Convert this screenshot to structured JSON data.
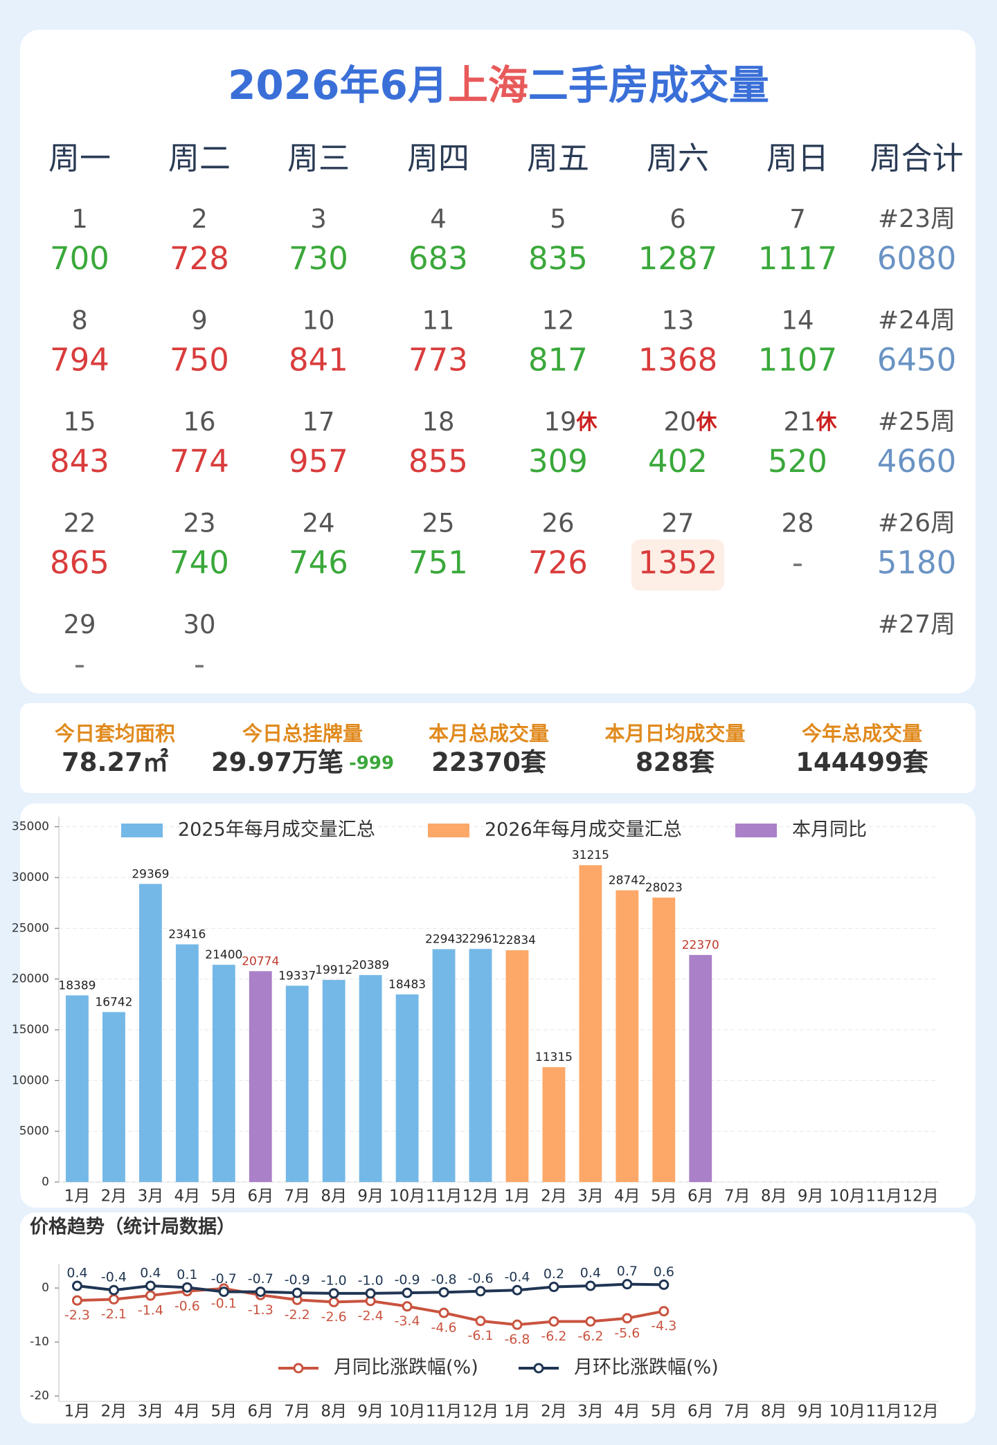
{
  "title_parts": [
    {
      "text": "2026年6月",
      "color": "#3a6fd8"
    },
    {
      "text": "上海",
      "color": "#e85a5a"
    },
    {
      "text": "二手房成交量",
      "color": "#3a6fd8"
    }
  ],
  "calendar": {
    "headers": [
      "周一",
      "周二",
      "周三",
      "周四",
      "周五",
      "周六",
      "周日",
      "周合计"
    ],
    "rows": [
      {
        "cells": [
          {
            "day": 1,
            "value": 700,
            "color": "#3aa83a"
          },
          {
            "day": 2,
            "value": 728,
            "color": "#d93c3c"
          },
          {
            "day": 3,
            "value": 730,
            "color": "#3aa83a"
          },
          {
            "day": 4,
            "value": 683,
            "color": "#3aa83a"
          },
          {
            "day": 5,
            "value": 835,
            "color": "#3aa83a"
          },
          {
            "day": 6,
            "value": 1287,
            "color": "#3aa83a"
          },
          {
            "day": 7,
            "value": 1117,
            "color": "#3aa83a"
          }
        ],
        "week": "#23周",
        "total": 6080
      },
      {
        "cells": [
          {
            "day": 8,
            "value": 794,
            "color": "#d93c3c"
          },
          {
            "day": 9,
            "value": 750,
            "color": "#d93c3c"
          },
          {
            "day": 10,
            "value": 841,
            "color": "#d93c3c"
          },
          {
            "day": 11,
            "value": 773,
            "color": "#d93c3c"
          },
          {
            "day": 12,
            "value": 817,
            "color": "#3aa83a"
          },
          {
            "day": 13,
            "value": 1368,
            "color": "#d93c3c"
          },
          {
            "day": 14,
            "value": 1107,
            "color": "#3aa83a"
          }
        ],
        "week": "#24周",
        "total": 6450
      },
      {
        "cells": [
          {
            "day": 15,
            "value": 843,
            "color": "#d93c3c"
          },
          {
            "day": 16,
            "value": 774,
            "color": "#d93c3c"
          },
          {
            "day": 17,
            "value": 957,
            "color": "#d93c3c"
          },
          {
            "day": 18,
            "value": 855,
            "color": "#d93c3c"
          },
          {
            "day": 19,
            "note": "休",
            "value": 309,
            "color": "#3aa83a"
          },
          {
            "day": 20,
            "note": "休",
            "value": 402,
            "color": "#3aa83a"
          },
          {
            "day": 21,
            "note": "休",
            "value": 520,
            "color": "#3aa83a"
          }
        ],
        "week": "#25周",
        "total": 4660
      },
      {
        "cells": [
          {
            "day": 22,
            "value": 865,
            "color": "#d93c3c"
          },
          {
            "day": 23,
            "value": 740,
            "color": "#3aa83a"
          },
          {
            "day": 24,
            "value": 746,
            "color": "#3aa83a"
          },
          {
            "day": 25,
            "value": 751,
            "color": "#3aa83a"
          },
          {
            "day": 26,
            "value": 726,
            "color": "#d93c3c"
          },
          {
            "day": 27,
            "value": 1352,
            "color": "#d93c3c",
            "highlight": "#fdeee6"
          },
          {
            "day": 28,
            "value": "-",
            "color": "#777777"
          }
        ],
        "week": "#26周",
        "total": 5180
      },
      {
        "cells": [
          {
            "day": 29,
            "value": "-",
            "color": "#777777"
          },
          {
            "day": 30,
            "value": "-",
            "color": "#777777"
          }
        ],
        "week": "#27周"
      }
    ]
  },
  "stats": [
    {
      "label": "今日套均面积",
      "value": "78.27㎡"
    },
    {
      "label": "今日总挂牌量",
      "value": "29.97万笔",
      "change": "-999",
      "change_color": "#3aa83a"
    },
    {
      "label": "本月总成交量",
      "value": "22370套"
    },
    {
      "label": "本月日均成交量",
      "value": "828套"
    },
    {
      "label": "今年总成交量",
      "value": "144499套"
    }
  ],
  "chart_data": [
    {
      "type": "bar",
      "categories": [
        "1月",
        "2月",
        "3月",
        "4月",
        "5月",
        "6月",
        "7月",
        "8月",
        "9月",
        "10月",
        "11月",
        "12月",
        "1月",
        "2月",
        "3月",
        "4月",
        "5月",
        "6月",
        "7月",
        "8月",
        "9月",
        "10月",
        "11月",
        "12月"
      ],
      "series": [
        {
          "name": "2025年每月成交量汇总",
          "color": "#74b8e7",
          "label_color": "#222222",
          "values": [
            18389,
            16742,
            29369,
            23416,
            21400,
            null,
            19337,
            19912,
            20389,
            18483,
            22943,
            22961,
            null,
            null,
            null,
            null,
            null,
            null,
            null,
            null,
            null,
            null,
            null,
            null
          ]
        },
        {
          "name": "2026年每月成交量汇总",
          "color": "#fda868",
          "label_color": "#222222",
          "values": [
            null,
            null,
            null,
            null,
            null,
            null,
            null,
            null,
            null,
            null,
            null,
            null,
            22834,
            11315,
            31215,
            28742,
            28023,
            null,
            null,
            null,
            null,
            null,
            null,
            null
          ]
        },
        {
          "name": "本月同比",
          "color": "#aa80c8",
          "label_color": "#c0392b",
          "values": [
            null,
            null,
            null,
            null,
            null,
            20774,
            null,
            null,
            null,
            null,
            null,
            null,
            null,
            null,
            null,
            null,
            null,
            22370,
            null,
            null,
            null,
            null,
            null,
            null
          ]
        }
      ],
      "ylim": [
        0,
        36000
      ],
      "yticks": [
        0,
        5000,
        10000,
        15000,
        20000,
        25000,
        30000,
        35000
      ],
      "grid": true
    },
    {
      "type": "line",
      "title": "价格趋势（统计局数据）",
      "categories": [
        "1月",
        "2月",
        "3月",
        "4月",
        "5月",
        "6月",
        "7月",
        "8月",
        "9月",
        "10月",
        "11月",
        "12月",
        "1月",
        "2月",
        "3月",
        "4月",
        "5月",
        "6月",
        "7月",
        "8月",
        "9月",
        "10月",
        "11月",
        "12月"
      ],
      "series": [
        {
          "name": "月同比涨跌幅(%)",
          "color": "#c9533f",
          "label_pos": "below",
          "values": [
            -2.3,
            -2.1,
            -1.4,
            -0.6,
            -0.1,
            -1.3,
            -2.2,
            -2.6,
            -2.4,
            -3.4,
            -4.6,
            -6.1,
            -6.8,
            -6.2,
            -6.2,
            -5.6,
            -4.3,
            null,
            null,
            null,
            null,
            null,
            null,
            null
          ]
        },
        {
          "name": "月环比涨跌幅(%)",
          "color": "#1f3552",
          "label_pos": "above",
          "values": [
            0.4,
            -0.4,
            0.4,
            0.1,
            -0.7,
            -0.7,
            -0.9,
            -1.0,
            -1.0,
            -0.9,
            -0.8,
            -0.6,
            -0.4,
            0.2,
            0.4,
            0.7,
            0.6,
            null,
            null,
            null,
            null,
            null,
            null,
            null
          ],
          "value_labels": [
            "0.4",
            "-0.4",
            "0.4",
            "0.1",
            "-0.7",
            "-0.7",
            "-0.9",
            "-1.0",
            "-1.0",
            "-0.9",
            "-0.8",
            "-0.6",
            "-0.4",
            "0.2",
            "0.4",
            "0.7",
            "0.6",
            null,
            null,
            null,
            null,
            null,
            null,
            null
          ]
        }
      ],
      "ylim": [
        -21,
        4.5
      ],
      "yticks": [
        -20,
        -10,
        0
      ],
      "grid": false
    }
  ]
}
